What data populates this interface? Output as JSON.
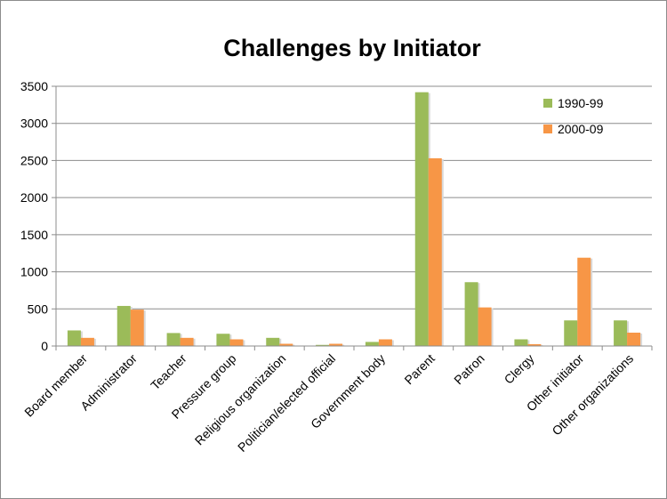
{
  "chart_data": {
    "type": "bar",
    "title": "Challenges by Initiator",
    "xlabel": "",
    "ylabel": "",
    "ylim": [
      0,
      3500
    ],
    "yticks": [
      0,
      500,
      1000,
      1500,
      2000,
      2500,
      3000,
      3500
    ],
    "grid": true,
    "legend_position": "top-right",
    "categories": [
      "Board member",
      "Administrator",
      "Teacher",
      "Pressure group",
      "Religious organization",
      "Politician/elected official",
      "Government body",
      "Parent",
      "Patron",
      "Clergy",
      "Other initiator",
      "Other organizations"
    ],
    "series": [
      {
        "name": "1990-99",
        "color": "#9bbb59",
        "values": [
          210,
          540,
          175,
          165,
          110,
          15,
          55,
          3420,
          860,
          90,
          345,
          345
        ]
      },
      {
        "name": "2000-09",
        "color": "#f79646",
        "values": [
          110,
          490,
          110,
          90,
          30,
          30,
          90,
          2530,
          520,
          25,
          1190,
          180
        ]
      }
    ]
  }
}
